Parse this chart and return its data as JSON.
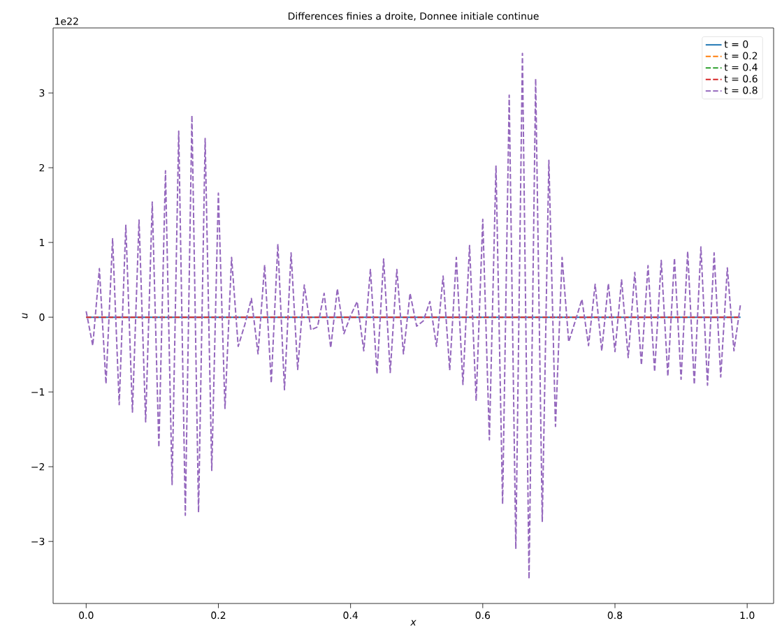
{
  "chart_data": {
    "type": "line",
    "title": "Differences finies a droite, Donnee initiale continue",
    "xlabel": "x",
    "ylabel": "u",
    "annotations": [
      "1e22"
    ],
    "xlim": [
      -0.05,
      1.04
    ],
    "ylim": [
      -3.83,
      3.87
    ],
    "xticks": [
      {
        "value": 0,
        "label": "0.0"
      },
      {
        "value": 0.2,
        "label": "0.2"
      },
      {
        "value": 0.4,
        "label": "0.4"
      },
      {
        "value": 0.6,
        "label": "0.6"
      },
      {
        "value": 0.8,
        "label": "0.8"
      },
      {
        "value": 1,
        "label": "1.0"
      }
    ],
    "yticks": [
      {
        "value": -3,
        "label": "−3"
      },
      {
        "value": -2,
        "label": "−2"
      },
      {
        "value": -1,
        "label": "−1"
      },
      0,
      1,
      2,
      3
    ],
    "legend": "top right",
    "x": [
      0,
      0.01,
      0.02,
      0.03,
      0.04,
      0.05,
      0.06,
      0.07,
      0.08,
      0.09,
      0.1,
      0.11,
      0.12,
      0.13,
      0.14,
      0.15,
      0.16,
      0.17,
      0.18,
      0.19,
      0.2,
      0.21,
      0.22,
      0.23,
      0.24,
      0.25,
      0.26,
      0.27,
      0.28,
      0.29,
      0.3,
      0.31,
      0.32,
      0.33,
      0.34,
      0.35,
      0.36,
      0.37,
      0.38,
      0.39,
      0.4,
      0.41,
      0.42,
      0.43,
      0.44,
      0.45,
      0.46,
      0.47,
      0.48,
      0.49,
      0.5,
      0.51,
      0.52,
      0.53,
      0.54,
      0.55,
      0.56,
      0.57,
      0.58,
      0.59,
      0.6,
      0.61,
      0.62,
      0.63,
      0.64,
      0.65,
      0.66,
      0.67,
      0.68,
      0.69,
      0.7,
      0.71,
      0.72,
      0.73,
      0.74,
      0.75,
      0.76,
      0.77,
      0.78,
      0.79,
      0.8,
      0.81,
      0.82,
      0.83,
      0.84,
      0.85,
      0.86,
      0.87,
      0.88,
      0.89,
      0.9,
      0.91,
      0.92,
      0.93,
      0.94,
      0.95,
      0.96,
      0.97,
      0.98,
      0.99
    ],
    "series": [
      {
        "name": "t = 0",
        "color": "#1f77b4",
        "line_style": "solid",
        "values": [
          0,
          0,
          0,
          0,
          0,
          0,
          0,
          0,
          0,
          0,
          0,
          0,
          0,
          0,
          0,
          0,
          0,
          0,
          0,
          0,
          0,
          0,
          0,
          0,
          0,
          0,
          0,
          0,
          0,
          0,
          0,
          0,
          0,
          0,
          0,
          0,
          0,
          0,
          0,
          0,
          0,
          0,
          0,
          0,
          0,
          0,
          0,
          0,
          0,
          0,
          0,
          0,
          0,
          0,
          0,
          0,
          0,
          0,
          0,
          0,
          0,
          0,
          0,
          0,
          0,
          0,
          0,
          0,
          0,
          0,
          0,
          0,
          0,
          0,
          0,
          0,
          0,
          0,
          0,
          0,
          0,
          0,
          0,
          0,
          0,
          0,
          0,
          0,
          0,
          0,
          0,
          0,
          0,
          0,
          0,
          0,
          0,
          0,
          0,
          0
        ]
      },
      {
        "name": "t = 0.2",
        "color": "#ff7f0e",
        "line_style": "dashed",
        "values": [
          null,
          null,
          null,
          null,
          null,
          null,
          null,
          null,
          null,
          null,
          null,
          null,
          null,
          null,
          null,
          null,
          null,
          null,
          null,
          null,
          null,
          null,
          null,
          null,
          null,
          null,
          null,
          null,
          null,
          null,
          null,
          null,
          null,
          null,
          null,
          null,
          null,
          null,
          null,
          null,
          null,
          null,
          null,
          null,
          null,
          null,
          null,
          null,
          null,
          null,
          null,
          null,
          null,
          null,
          null,
          null,
          null,
          null,
          null,
          null,
          null,
          null,
          null,
          null,
          null,
          null,
          null,
          null,
          null,
          null,
          null,
          null,
          null,
          null,
          null,
          null,
          null,
          null,
          null,
          null,
          null,
          null,
          null,
          null,
          null,
          null,
          null,
          null,
          null,
          null,
          null,
          null,
          null,
          null,
          null,
          null,
          null,
          null,
          null,
          null
        ]
      },
      {
        "name": "t = 0.4",
        "color": "#2ca02c",
        "line_style": "dashed",
        "values": [
          null,
          null,
          null,
          null,
          null,
          null,
          null,
          null,
          null,
          null,
          null,
          null,
          null,
          null,
          null,
          null,
          null,
          null,
          null,
          null,
          null,
          null,
          null,
          null,
          null,
          null,
          null,
          null,
          null,
          null,
          null,
          null,
          null,
          null,
          null,
          null,
          null,
          null,
          null,
          null,
          null,
          null,
          null,
          null,
          null,
          null,
          null,
          null,
          null,
          null,
          null,
          null,
          null,
          null,
          null,
          null,
          null,
          null,
          null,
          null,
          null,
          null,
          null,
          null,
          null,
          null,
          null,
          null,
          null,
          null,
          null,
          null,
          null,
          null,
          null,
          null,
          null,
          null,
          null,
          null,
          null,
          null,
          null,
          null,
          null,
          null,
          null,
          null,
          null,
          null,
          null,
          null,
          null,
          null,
          null,
          null,
          null,
          null,
          null,
          null
        ]
      },
      {
        "name": "t = 0.6",
        "color": "#d62728",
        "line_style": "dashed",
        "values": [
          0,
          0,
          0,
          0,
          0,
          0,
          0,
          0,
          0,
          0,
          0,
          0,
          0,
          0,
          0,
          0,
          0,
          0,
          0,
          0,
          0,
          0,
          0,
          0,
          0,
          0,
          0,
          0,
          0,
          0,
          0,
          0,
          0,
          0,
          0,
          0,
          0,
          0,
          0,
          0,
          0,
          0,
          0,
          0,
          0,
          0,
          0,
          0,
          0,
          0,
          0,
          0,
          0,
          0,
          0,
          0,
          0,
          0,
          0,
          0,
          0,
          0,
          0,
          0,
          0,
          0,
          0,
          0,
          0,
          0,
          0,
          0,
          0,
          0,
          0,
          0,
          0,
          0,
          0,
          0,
          0,
          0,
          0,
          0,
          0,
          0,
          0,
          0,
          0,
          0,
          0,
          0,
          0,
          0,
          0,
          0,
          0,
          0,
          0,
          0
        ]
      },
      {
        "name": "t = 0.8",
        "color": "#9467bd",
        "line_style": "dashed",
        "values": [
          0.08,
          -0.38,
          0.65,
          -0.89,
          1.05,
          -1.17,
          1.23,
          -1.27,
          1.3,
          -1.4,
          1.54,
          -1.74,
          1.96,
          -2.24,
          2.49,
          -2.65,
          2.7,
          -2.61,
          2.39,
          -2.05,
          1.66,
          -1.22,
          0.8,
          -0.39,
          -0.1,
          0.25,
          -0.49,
          0.7,
          -0.88,
          0.98,
          -0.97,
          0.86,
          -0.7,
          0.43,
          -0.17,
          -0.13,
          0.32,
          -0.41,
          0.38,
          -0.22,
          0.02,
          0.21,
          -0.45,
          0.64,
          -0.76,
          0.78,
          -0.74,
          0.64,
          -0.49,
          0.32,
          -0.12,
          -0.05,
          0.21,
          -0.39,
          0.55,
          -0.71,
          0.8,
          -0.9,
          0.96,
          -1.12,
          1.31,
          -1.64,
          2.03,
          -2.5,
          2.97,
          -3.1,
          3.53,
          -3.5,
          3.19,
          -2.74,
          2.1,
          -1.46,
          0.8,
          -0.33,
          -0.05,
          0.24,
          -0.38,
          0.44,
          -0.45,
          0.45,
          -0.46,
          0.5,
          -0.54,
          0.6,
          -0.64,
          0.69,
          -0.73,
          0.76,
          -0.79,
          0.79,
          -0.83,
          0.88,
          -0.9,
          0.94,
          -0.91,
          0.86,
          -0.8,
          0.66,
          -0.45,
          0.18
        ]
      }
    ]
  }
}
